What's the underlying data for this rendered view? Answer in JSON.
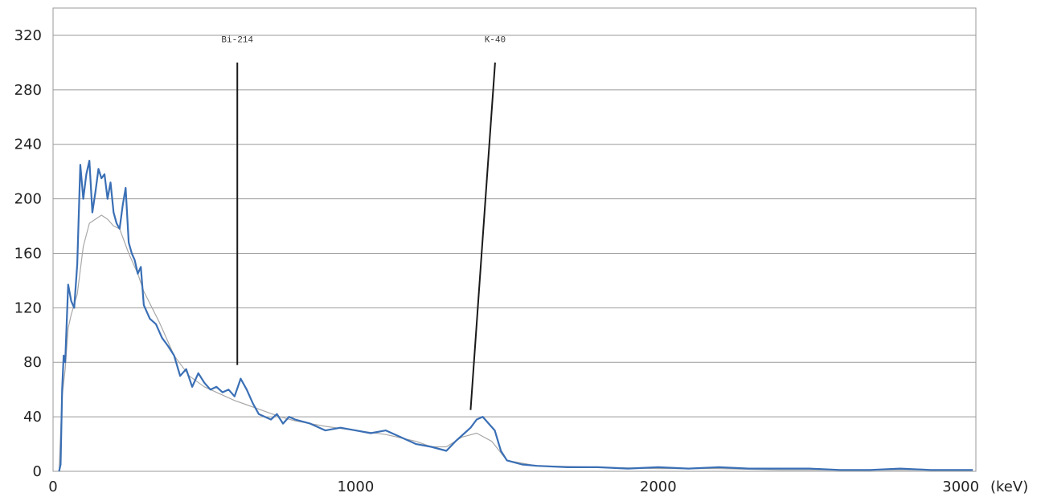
{
  "chart_data": {
    "type": "line",
    "title": "",
    "xlabel": "",
    "ylabel": "",
    "x_unit": "(keV)",
    "xlim": [
      0,
      3050
    ],
    "ylim": [
      0,
      340
    ],
    "x_ticks": [
      0,
      1000,
      2000,
      3000
    ],
    "x_tick_labels": [
      "0",
      "1000",
      "2000",
      "3000"
    ],
    "y_ticks": [
      0,
      40,
      80,
      120,
      160,
      200,
      240,
      280,
      320
    ],
    "y_tick_labels": [
      "0",
      "40",
      "80",
      "120",
      "160",
      "200",
      "240",
      "280",
      "320"
    ],
    "grid": "horizontal",
    "legend": "none",
    "annotations": [
      {
        "text": "Bi-214",
        "energy": 609,
        "label_value": 315,
        "line_top": 300,
        "line_bottom": 78,
        "line_bottom_energy": 609
      },
      {
        "text": "K-40",
        "energy": 1461,
        "label_value": 315,
        "line_top": 300,
        "line_bottom": 45,
        "line_bottom_energy": 1380
      }
    ],
    "series": [
      {
        "color": "#3a6fb5",
        "x": [
          20,
          25,
          30,
          35,
          40,
          50,
          60,
          70,
          80,
          90,
          100,
          110,
          120,
          130,
          140,
          150,
          160,
          170,
          180,
          190,
          200,
          210,
          220,
          230,
          240,
          250,
          260,
          270,
          280,
          290,
          300,
          320,
          340,
          360,
          380,
          400,
          420,
          440,
          460,
          480,
          500,
          520,
          540,
          560,
          580,
          600,
          620,
          640,
          660,
          680,
          700,
          720,
          740,
          760,
          780,
          800,
          850,
          900,
          950,
          1000,
          1050,
          1100,
          1150,
          1200,
          1250,
          1300,
          1330,
          1360,
          1380,
          1400,
          1420,
          1440,
          1460,
          1480,
          1500,
          1550,
          1600,
          1700,
          1800,
          1900,
          2000,
          2100,
          2200,
          2300,
          2400,
          2500,
          2600,
          2700,
          2800,
          2900,
          3000,
          3040
        ],
        "y": [
          0,
          5,
          60,
          85,
          80,
          137,
          125,
          120,
          152,
          225,
          200,
          218,
          228,
          190,
          205,
          222,
          215,
          218,
          200,
          212,
          190,
          182,
          178,
          195,
          208,
          168,
          160,
          155,
          145,
          150,
          122,
          112,
          108,
          98,
          92,
          85,
          70,
          75,
          62,
          72,
          65,
          60,
          62,
          58,
          60,
          55,
          68,
          60,
          50,
          42,
          40,
          38,
          42,
          35,
          40,
          38,
          35,
          30,
          32,
          30,
          28,
          30,
          25,
          20,
          18,
          15,
          22,
          28,
          32,
          38,
          40,
          35,
          30,
          15,
          8,
          5,
          4,
          3,
          3,
          2,
          3,
          2,
          3,
          2,
          2,
          2,
          1,
          1,
          2,
          1,
          1,
          1
        ]
      },
      {
        "color": "#a8a8a8",
        "x": [
          20,
          30,
          40,
          50,
          60,
          80,
          100,
          120,
          140,
          160,
          180,
          200,
          220,
          250,
          280,
          300,
          350,
          400,
          450,
          500,
          550,
          600,
          650,
          700,
          750,
          800,
          900,
          1000,
          1100,
          1200,
          1250,
          1300,
          1350,
          1400,
          1450,
          1500,
          1600,
          1800,
          2000,
          2200,
          2400,
          2600,
          2800,
          3000,
          3040
        ],
        "y": [
          0,
          55,
          75,
          105,
          115,
          130,
          165,
          182,
          185,
          188,
          185,
          180,
          178,
          160,
          145,
          132,
          110,
          85,
          70,
          62,
          57,
          52,
          48,
          44,
          40,
          37,
          33,
          30,
          27,
          22,
          18,
          18,
          25,
          28,
          22,
          8,
          4,
          3,
          2,
          2,
          1,
          1,
          1,
          1,
          1
        ]
      }
    ]
  }
}
